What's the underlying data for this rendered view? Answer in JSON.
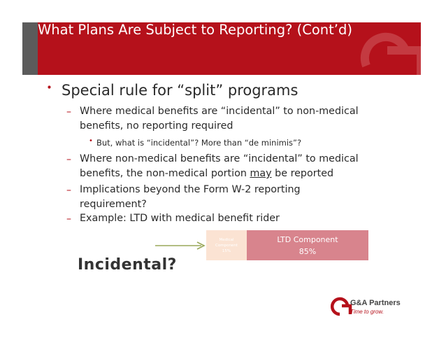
{
  "slide": {
    "title": "What Plans Are Subject to Reporting? (Cont’d)",
    "bullet": "Special rule for “split” programs",
    "sub_items": [
      {
        "text_a": "Where medical benefits are “incidental” to non-medical",
        "text_b": "benefits, no reporting required"
      },
      {
        "text_a": "Where non-medical benefits are “incidental” to medical",
        "text_b_pre": "benefits, the non-medical portion ",
        "text_b_u": "may",
        "text_b_post": " be reported"
      },
      {
        "text_a": "Implications beyond the Form W-2 reporting",
        "text_b": "requirement?"
      },
      {
        "text_a": "Example: LTD with medical benefit rider"
      }
    ],
    "sub_sub_item": "But, what is “incidental”?  More than “de minimis”?",
    "dash_glyph": "–",
    "bullet_glyph": "•"
  },
  "diagram": {
    "medical_line1": "Medical",
    "medical_line2": "Component",
    "medical_pct": "15%",
    "ltd_label": "LTD Component",
    "ltd_pct": "85%",
    "incidental_label": "Incidental?"
  },
  "logo": {
    "name": "G&A Partners",
    "tagline": "Time to grow."
  },
  "colors": {
    "brand_red": "#b5111b",
    "medical_box": "#fbe3d3",
    "ltd_box": "#d8848d",
    "arrow": "#9aa85a"
  }
}
